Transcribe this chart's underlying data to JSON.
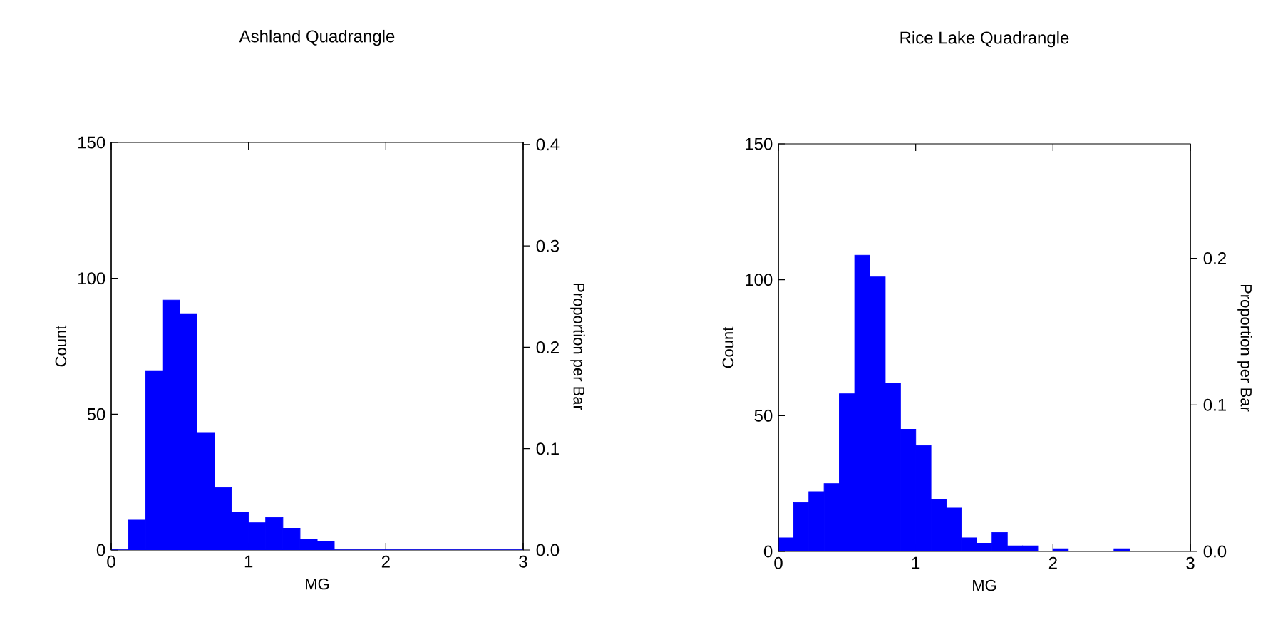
{
  "chart_data": [
    {
      "type": "histogram",
      "title": "Ashland Quadrangle",
      "xlabel": "MG",
      "ylabel": "Count",
      "y2label": "Proportion per Bar",
      "color": "#0000ff",
      "bins": [
        0.125,
        0.25,
        0.375,
        0.5,
        0.625,
        0.75,
        0.875,
        1,
        1.125,
        1.25,
        1.375,
        1.5,
        1.625
      ],
      "values": [
        11,
        66,
        92,
        87,
        43,
        23,
        14,
        10,
        12,
        8,
        4,
        3
      ],
      "xlim": [
        0,
        3
      ],
      "xticks": [
        0,
        1,
        2,
        3
      ],
      "ylim": [
        0,
        150
      ],
      "yticks": [
        0,
        50,
        100,
        150
      ],
      "y2lim": [
        0,
        0.402
      ],
      "y2ticks": [
        {
          "value": 0,
          "label": "0.0"
        },
        {
          "value": 0.1,
          "label": "0.1"
        },
        {
          "value": 0.2,
          "label": "0.2"
        },
        {
          "value": 0.3,
          "label": "0.3"
        },
        {
          "value": 0.4,
          "label": "0.4"
        }
      ]
    },
    {
      "type": "histogram",
      "title": "Rice Lake Quadrangle",
      "xlabel": "MG",
      "ylabel": "Count",
      "y2label": "Proportion per Bar",
      "color": "#0000ff",
      "bins": [
        0,
        0.111,
        0.222,
        0.333,
        0.444,
        0.556,
        0.667,
        0.778,
        0.889,
        1,
        1.111,
        1.222,
        1.333,
        1.444,
        1.556,
        1.667,
        1.778,
        1.889,
        2,
        2.111,
        2.222,
        2.333,
        2.444,
        2.556
      ],
      "values": [
        5,
        18,
        22,
        25,
        58,
        109,
        101,
        62,
        45,
        39,
        19,
        16,
        5,
        3,
        7,
        2,
        2,
        0,
        1,
        0,
        0,
        0,
        1
      ],
      "xlim": [
        0,
        3
      ],
      "xticks": [
        0,
        1,
        2,
        3
      ],
      "ylim": [
        0,
        150
      ],
      "yticks": [
        0,
        50,
        100,
        150
      ],
      "y2lim": [
        0,
        0.278
      ],
      "y2ticks": [
        {
          "value": 0,
          "label": "0.0"
        },
        {
          "value": 0.1,
          "label": "0.1"
        },
        {
          "value": 0.2,
          "label": "0.2"
        }
      ]
    }
  ]
}
